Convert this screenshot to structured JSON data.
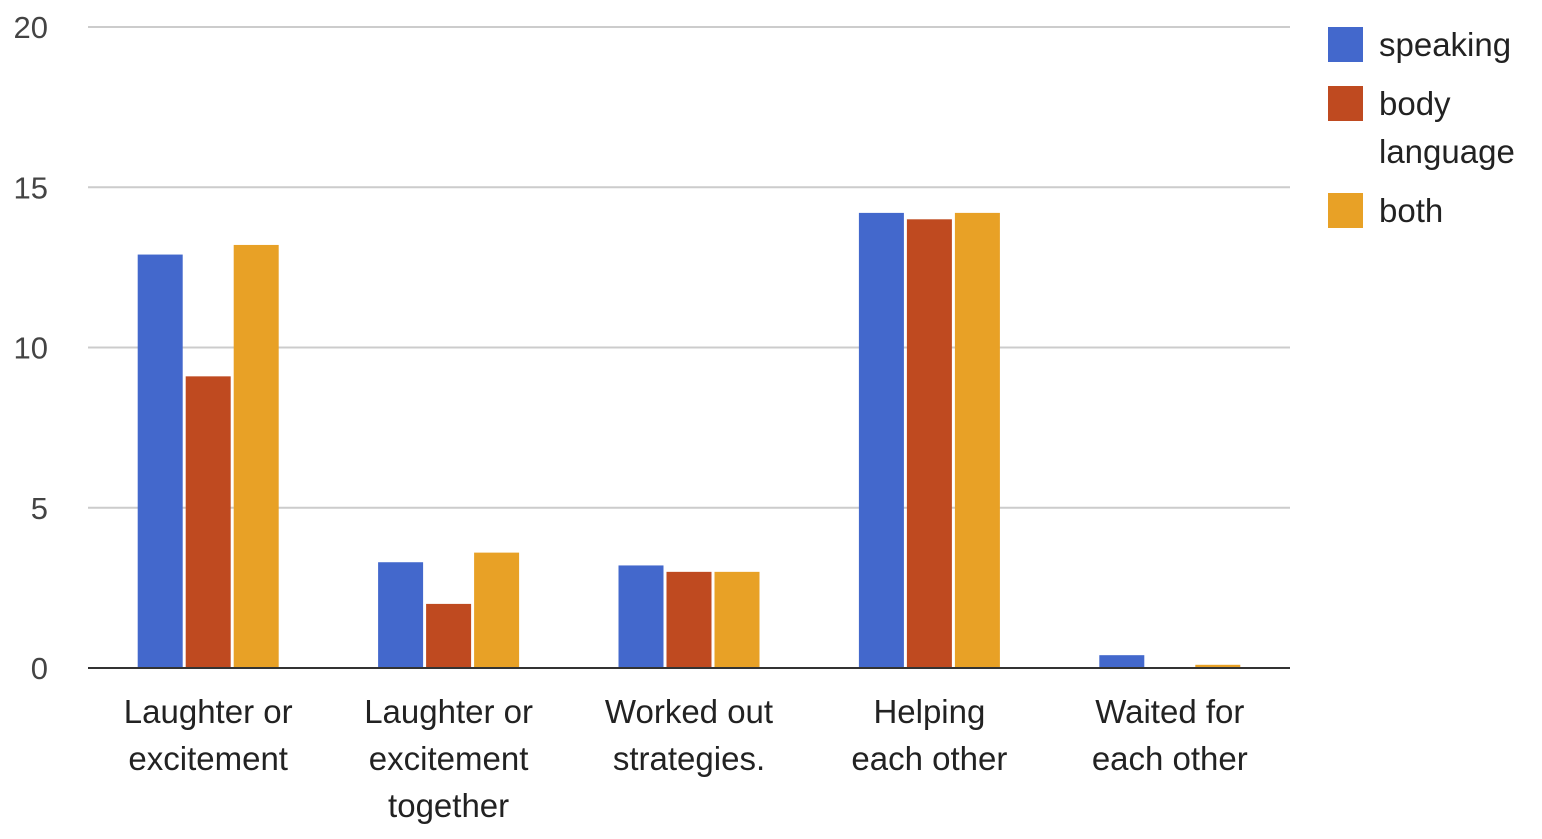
{
  "chart_data": {
    "type": "bar",
    "categories": [
      "Laughter or excitement",
      "Laughter or excitement together",
      "Worked out strategies.",
      "Helping each other",
      "Waited for each other"
    ],
    "category_lines": [
      [
        "Laughter or",
        "excitement"
      ],
      [
        "Laughter or",
        "excitement",
        "together"
      ],
      [
        "Worked out",
        "strategies."
      ],
      [
        "Helping",
        "each other"
      ],
      [
        "Waited for",
        "each other"
      ]
    ],
    "series": [
      {
        "name": "speaking",
        "color": "#4368CC",
        "values": [
          12.9,
          3.3,
          3.2,
          14.2,
          0.4
        ]
      },
      {
        "name": "body language",
        "color": "#BF4A20",
        "values": [
          9.1,
          2.0,
          3.0,
          14.0,
          0
        ]
      },
      {
        "name": "both",
        "color": "#E8A126",
        "values": [
          13.2,
          3.6,
          3.0,
          14.2,
          0.1
        ]
      }
    ],
    "legend_lines": [
      [
        "speaking"
      ],
      [
        "body",
        "language"
      ],
      [
        "both"
      ]
    ],
    "yticks": [
      0,
      5,
      10,
      15,
      20
    ],
    "ylim": [
      0,
      20
    ],
    "title": "",
    "xlabel": "",
    "ylabel": "",
    "grid": true,
    "legend_position": "right"
  }
}
